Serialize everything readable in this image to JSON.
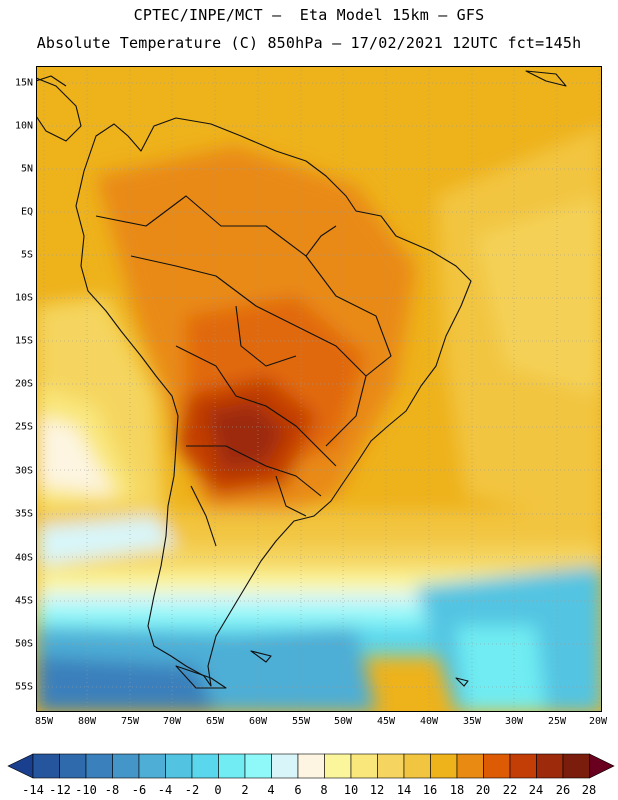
{
  "header": {
    "line1": "CPTEC/INPE/MCT –  Eta Model 15km – GFS",
    "line2": "Absolute Temperature (C) 850hPa – 17/02/2021 12UTC fct=145h"
  },
  "map": {
    "lat_labels": [
      "15N",
      "10N",
      "5N",
      "EQ",
      "5S",
      "10S",
      "15S",
      "20S",
      "25S",
      "30S",
      "35S",
      "40S",
      "45S",
      "50S",
      "55S"
    ],
    "lon_labels": [
      "85W",
      "80W",
      "75W",
      "70W",
      "65W",
      "60W",
      "55W",
      "50W",
      "45W",
      "40W",
      "35W",
      "30W",
      "25W",
      "20W"
    ],
    "region": "South America",
    "variable": "Absolute Temperature (C) 850hPa"
  },
  "colorbar": {
    "labels": [
      "-14",
      "-12",
      "-10",
      "-8",
      "-6",
      "-4",
      "-2",
      "0",
      "2",
      "4",
      "6",
      "8",
      "10",
      "12",
      "14",
      "16",
      "18",
      "20",
      "22",
      "24",
      "26",
      "28"
    ],
    "colors": [
      "#1a3f8f",
      "#25559d",
      "#2f6aad",
      "#3a80bc",
      "#4596c8",
      "#4eaed6",
      "#52c4e2",
      "#5ad7ec",
      "#70ecf2",
      "#8ff8f8",
      "#d8f6fa",
      "#fdf5e1",
      "#fbf59b",
      "#f9e77c",
      "#f5d55f",
      "#f2c540",
      "#eeb21b",
      "#e98a12",
      "#dd5b05",
      "#c33e06",
      "#9d2a0a",
      "#7a1d0d",
      "#6a0020"
    ]
  }
}
